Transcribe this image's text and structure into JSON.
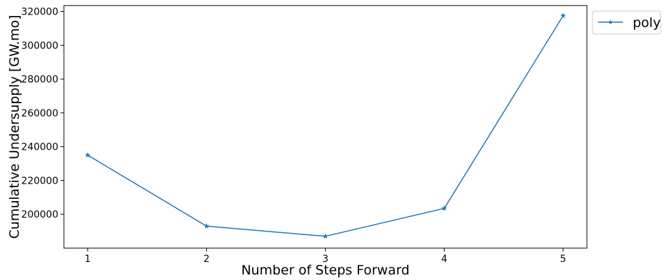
{
  "chart_data": {
    "type": "line",
    "xlabel": "Number of Steps Forward",
    "ylabel": "Cumulative Undersupply [GW.mo]",
    "x": [
      1,
      2,
      3,
      4,
      5
    ],
    "xticks": [
      "1",
      "2",
      "3",
      "4",
      "5"
    ],
    "xlim": [
      0.8,
      5.2
    ],
    "yticks": [
      "200000",
      "220000",
      "240000",
      "260000",
      "280000",
      "300000",
      "320000"
    ],
    "ytick_values": [
      200000,
      220000,
      240000,
      260000,
      280000,
      300000,
      320000
    ],
    "ylim": [
      180000,
      323500
    ],
    "series": [
      {
        "name": "poly",
        "values": [
          235000,
          193000,
          187000,
          203500,
          317500
        ],
        "color": "#1f77b4",
        "marker": "star"
      }
    ],
    "grid": false,
    "legend_position": "outside top-right"
  }
}
